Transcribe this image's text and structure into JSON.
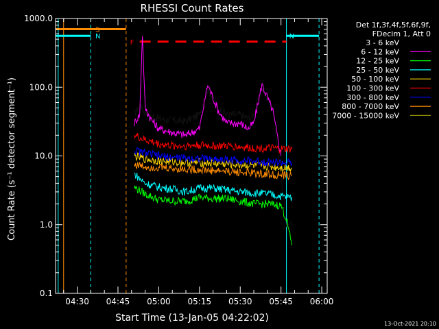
{
  "chart_data": {
    "type": "line",
    "title": "RHESSI Count Rates",
    "xlabel": "Start Time (13-Jan-05 04:22:02)",
    "ylabel": "Count Rate (s⁻¹ detector segment⁻¹)",
    "y_scale": "log",
    "ylim": [
      0.1,
      1000.0
    ],
    "xlim": [
      "04:22:02",
      "06:02:00"
    ],
    "x_ticks": [
      "04:30",
      "04:45",
      "05:00",
      "05:15",
      "05:30",
      "05:45",
      "06:00"
    ],
    "y_ticks": [
      "0.1",
      "1.0",
      "10.0",
      "100.0",
      "1000.0"
    ],
    "legend_header": [
      "Det 1f,3f,4f,5f,6f,9f,",
      "FDecim 1, Att 0"
    ],
    "legend_placement": "right",
    "series": [
      {
        "name": "3 - 6 keV",
        "color": "#000000",
        "x": [
          "04:51",
          "04:53",
          "04:55",
          "05:00",
          "05:05",
          "05:10",
          "05:15",
          "05:18",
          "05:22",
          "05:25",
          "05:30",
          "05:33",
          "05:35",
          "05:38",
          "05:42",
          "05:45",
          "05:47",
          "05:49"
        ],
        "y": [
          40,
          55,
          42,
          35,
          33,
          32,
          40,
          95,
          50,
          40,
          40,
          35,
          40,
          95,
          50,
          5,
          1,
          1
        ]
      },
      {
        "name": "6 - 12 keV",
        "color": "#ff00ff",
        "x": [
          "04:51",
          "04:53",
          "04:54",
          "04:55",
          "04:57",
          "05:00",
          "05:05",
          "05:10",
          "05:15",
          "05:18",
          "05:22",
          "05:25",
          "05:30",
          "05:33",
          "05:35",
          "05:38",
          "05:42",
          "05:45"
        ],
        "y": [
          30,
          40,
          600,
          50,
          35,
          25,
          22,
          20,
          25,
          110,
          45,
          30,
          30,
          25,
          30,
          110,
          45,
          10
        ]
      },
      {
        "name": "12 - 25 keV",
        "color": "#00ff00",
        "x": [
          "04:51",
          "04:55",
          "05:00",
          "05:05",
          "05:10",
          "05:15",
          "05:20",
          "05:25",
          "05:30",
          "05:35",
          "05:40",
          "05:45",
          "05:47",
          "05:49"
        ],
        "y": [
          3.5,
          2.8,
          2.3,
          2.2,
          2.2,
          2.5,
          2.4,
          2.4,
          2.2,
          2.0,
          2.0,
          1.9,
          1.2,
          0.5
        ]
      },
      {
        "name": "25 - 50 keV",
        "color": "#00ffff",
        "x": [
          "04:51",
          "04:55",
          "05:00",
          "05:05",
          "05:10",
          "05:15",
          "05:20",
          "05:25",
          "05:30",
          "05:35",
          "05:40",
          "05:45",
          "05:49"
        ],
        "y": [
          5.5,
          4.0,
          3.5,
          3.3,
          3.0,
          3.4,
          3.4,
          3.2,
          3.0,
          2.9,
          2.8,
          2.6,
          2.5
        ]
      },
      {
        "name": "50 - 100 keV",
        "color": "#ffd700",
        "x": [
          "04:51",
          "04:55",
          "05:00",
          "05:05",
          "05:10",
          "05:15",
          "05:20",
          "05:25",
          "05:30",
          "05:35",
          "05:40",
          "05:45",
          "05:49"
        ],
        "y": [
          10,
          9,
          8.5,
          8.2,
          8.0,
          8.0,
          7.8,
          7.6,
          7.4,
          7.2,
          7.0,
          6.8,
          6.7
        ]
      },
      {
        "name": "100 - 300 keV",
        "color": "#ff0000",
        "x": [
          "04:51",
          "04:55",
          "05:00",
          "05:05",
          "05:10",
          "05:15",
          "05:20",
          "05:25",
          "05:30",
          "05:35",
          "05:40",
          "05:45",
          "05:49"
        ],
        "y": [
          20,
          17,
          15,
          14,
          14,
          14.5,
          14,
          14,
          13.5,
          13,
          13,
          12.5,
          12.5
        ]
      },
      {
        "name": "300 - 800 keV",
        "color": "#0000ff",
        "x": [
          "04:51",
          "04:55",
          "05:00",
          "05:05",
          "05:10",
          "05:15",
          "05:20",
          "05:25",
          "05:30",
          "05:35",
          "05:40",
          "05:45",
          "05:49"
        ],
        "y": [
          12,
          11,
          10,
          9.5,
          9.3,
          9.2,
          9.0,
          8.8,
          8.6,
          8.4,
          8.2,
          8.0,
          7.8
        ]
      },
      {
        "name": "800 - 7000 keV",
        "color": "#ff8c00",
        "x": [
          "04:51",
          "04:55",
          "05:00",
          "05:05",
          "05:10",
          "05:15",
          "05:20",
          "05:25",
          "05:30",
          "05:35",
          "05:40",
          "05:45",
          "05:49"
        ],
        "y": [
          7.5,
          7.0,
          6.8,
          6.6,
          6.4,
          6.3,
          6.1,
          6.0,
          5.8,
          5.6,
          5.4,
          5.2,
          5.1
        ]
      },
      {
        "name": "7000 - 15000 keV",
        "color": "#8b8b00",
        "x": [],
        "y": []
      }
    ],
    "flag_segments": [
      {
        "label": "S",
        "color": "#ff8c00",
        "y": 700,
        "x": [
          "04:22:02",
          "04:48"
        ]
      },
      {
        "label": "N",
        "color": "#00ffff",
        "y": 560,
        "x": [
          "04:22:02",
          "04:35"
        ]
      },
      {
        "label": "N",
        "color": "#00ffff",
        "y": 560,
        "x": [
          "05:47",
          "05:59"
        ]
      },
      {
        "label": "F",
        "color": "#ff0000",
        "y": 460,
        "dashed": true,
        "x": [
          "04:53",
          "05:47"
        ]
      }
    ],
    "vertical_markers": [
      {
        "x": "04:23",
        "color": "#00ffff",
        "style": "solid"
      },
      {
        "x": "04:25",
        "color": "#ff8c00",
        "style": "solid"
      },
      {
        "x": "04:35",
        "color": "#00ffff",
        "style": "dashed"
      },
      {
        "x": "04:48",
        "color": "#ff8c00",
        "style": "dashed"
      },
      {
        "x": "05:47",
        "color": "#00ffff",
        "style": "solid"
      },
      {
        "x": "05:59",
        "color": "#00ffff",
        "style": "dashed"
      }
    ]
  },
  "footer_date": "13-Oct-2021 20:10"
}
